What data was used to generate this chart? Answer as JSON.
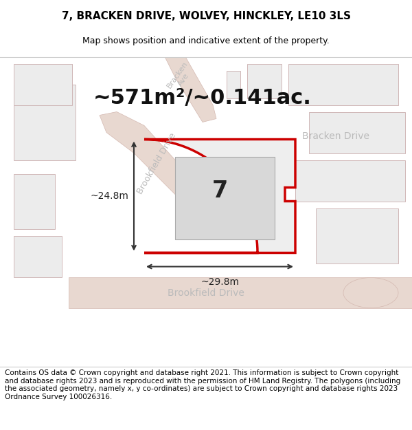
{
  "title": "7, BRACKEN DRIVE, WOLVEY, HINCKLEY, LE10 3LS",
  "subtitle": "Map shows position and indicative extent of the property.",
  "area_text": "~571m²/~0.141ac.",
  "plot_number": "7",
  "dim_width": "~29.8m",
  "dim_height": "~24.8m",
  "footer": "Contains OS data © Crown copyright and database right 2021. This information is subject to Crown copyright and database rights 2023 and is reproduced with the permission of HM Land Registry. The polygons (including the associated geometry, namely x, y co-ordinates) are subject to Crown copyright and database rights 2023 Ordnance Survey 100026316.",
  "bg_color": "#f5f5f5",
  "map_bg": "#f0f0f0",
  "road_color": "#e8d8d0",
  "road_outline": "#d4b8b0",
  "plot_outline_color": "#cc0000",
  "plot_fill_color": "#e8e8e8",
  "building_fill": "#d8d8d8",
  "building_outline": "#aaaaaa",
  "street_label_color": "#aaaaaa",
  "dim_line_color": "#333333",
  "title_fontsize": 11,
  "subtitle_fontsize": 9,
  "area_fontsize": 22,
  "footer_fontsize": 7.5
}
